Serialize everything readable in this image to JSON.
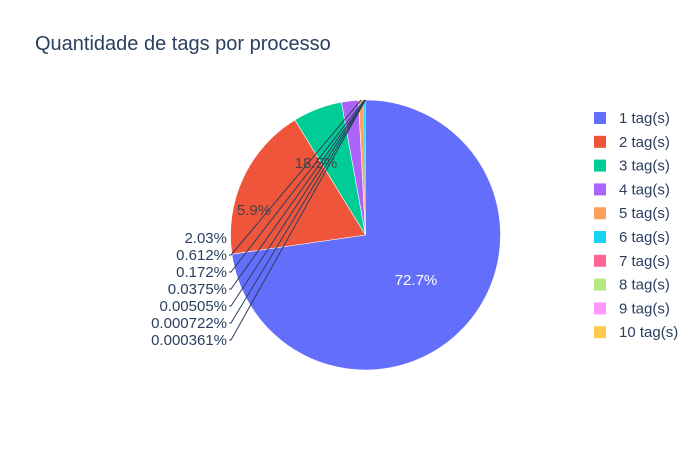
{
  "chart_data": {
    "type": "pie",
    "title": "Quantidade de tags por processo",
    "legend_position": "right",
    "direction": "clockwise",
    "start": "top",
    "slices": [
      {
        "label": "1 tag(s)",
        "percent_text": "72.7%",
        "value": 72.7,
        "color": "#636efa"
      },
      {
        "label": "2 tag(s)",
        "percent_text": "18.5%",
        "value": 18.5,
        "color": "#ef553b"
      },
      {
        "label": "3 tag(s)",
        "percent_text": "5.9%",
        "value": 5.9,
        "color": "#00cc96"
      },
      {
        "label": "4 tag(s)",
        "percent_text": "2.03%",
        "value": 2.03,
        "color": "#ab63fa"
      },
      {
        "label": "5 tag(s)",
        "percent_text": "0.612%",
        "value": 0.612,
        "color": "#ffa15a"
      },
      {
        "label": "6 tag(s)",
        "percent_text": "0.172%",
        "value": 0.172,
        "color": "#19d3f3"
      },
      {
        "label": "7 tag(s)",
        "percent_text": "0.0375%",
        "value": 0.0375,
        "color": "#ff6692"
      },
      {
        "label": "8 tag(s)",
        "percent_text": "0.00505%",
        "value": 0.00505,
        "color": "#b6e880"
      },
      {
        "label": "9 tag(s)",
        "percent_text": "0.000722%",
        "value": 0.000722,
        "color": "#ff97ff"
      },
      {
        "label": "10 tag(s)",
        "percent_text": "0.000361%",
        "value": 0.000361,
        "color": "#fecb52"
      }
    ]
  }
}
